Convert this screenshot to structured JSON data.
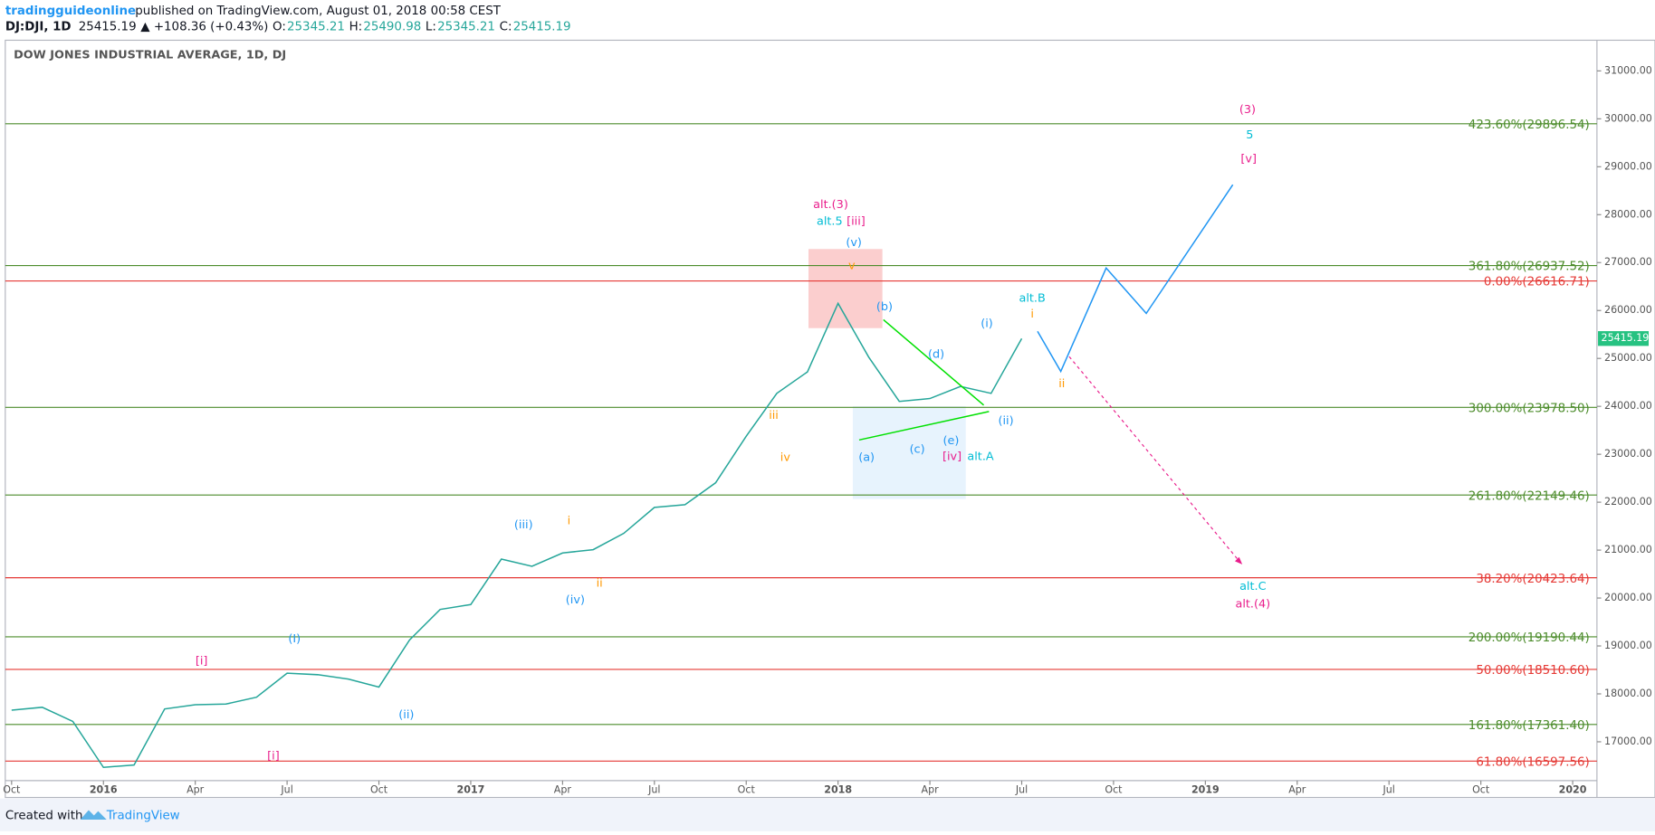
{
  "header": {
    "author": "tradingguideonline",
    "published": "published on TradingView.com, August 01, 2018 00:58 CEST",
    "symbol": "DJ:DJI, 1D",
    "price": "25415.19",
    "change": "▲ +108.36 (+0.43%)",
    "ohlc": [
      {
        "key": "O:",
        "value": "25345.21"
      },
      {
        "key": "H:",
        "value": "25490.98"
      },
      {
        "key": "L:",
        "value": "25345.21"
      },
      {
        "key": "C:",
        "value": "25415.19"
      }
    ]
  },
  "chart_data": {
    "type": "line",
    "title": "DOW JONES INDUSTRIAL AVERAGE, 1D, DJ",
    "color": "#26a69a",
    "x": [
      "2015-10",
      "2015-11",
      "2015-12",
      "2016-01",
      "2016-02",
      "2016-03",
      "2016-04",
      "2016-05",
      "2016-06",
      "2016-07",
      "2016-08",
      "2016-09",
      "2016-10",
      "2016-11",
      "2016-12",
      "2017-01",
      "2017-02",
      "2017-03",
      "2017-04",
      "2017-05",
      "2017-06",
      "2017-07",
      "2017-08",
      "2017-09",
      "2017-10",
      "2017-11",
      "2017-12",
      "2018-01",
      "2018-02",
      "2018-03",
      "2018-04",
      "2018-05",
      "2018-06",
      "2018-07"
    ],
    "values": [
      17660,
      17720,
      17425,
      16466,
      16516,
      17685,
      17773,
      17787,
      17930,
      18432,
      18400,
      18308,
      18142,
      19124,
      19762,
      19864,
      20812,
      20663,
      20940,
      21009,
      21350,
      21891,
      21948,
      22405,
      23377,
      24272,
      24719,
      26149,
      25029,
      24103,
      24163,
      24416,
      24271,
      25415
    ],
    "xlim": [
      "2015-10",
      "2020-01"
    ],
    "xticks": [
      {
        "value": "2015-10",
        "label": "Oct"
      },
      {
        "value": "2016-01",
        "label": "2016"
      },
      {
        "value": "2016-04",
        "label": "Apr"
      },
      {
        "value": "2016-07",
        "label": "Jul"
      },
      {
        "value": "2016-10",
        "label": "Oct"
      },
      {
        "value": "2017-01",
        "label": "2017"
      },
      {
        "value": "2017-04",
        "label": "Apr"
      },
      {
        "value": "2017-07",
        "label": "Jul"
      },
      {
        "value": "2017-10",
        "label": "Oct"
      },
      {
        "value": "2018-01",
        "label": "2018"
      },
      {
        "value": "2018-04",
        "label": "Apr"
      },
      {
        "value": "2018-07",
        "label": "Jul"
      },
      {
        "value": "2018-10",
        "label": "Oct"
      },
      {
        "value": "2019-01",
        "label": "2019"
      },
      {
        "value": "2019-04",
        "label": "Apr"
      },
      {
        "value": "2019-07",
        "label": "Jul"
      },
      {
        "value": "2019-10",
        "label": "Oct"
      },
      {
        "value": "2020-01",
        "label": "2020"
      }
    ],
    "ylim": [
      16190,
      31640
    ],
    "yticks": [
      {
        "value": 17000,
        "label": "17000.00"
      },
      {
        "value": 18000,
        "label": "18000.00"
      },
      {
        "value": 19000,
        "label": "19000.00"
      },
      {
        "value": 20000,
        "label": "20000.00"
      },
      {
        "value": 21000,
        "label": "21000.00"
      },
      {
        "value": 22000,
        "label": "22000.00"
      },
      {
        "value": 23000,
        "label": "23000.00"
      },
      {
        "value": 24000,
        "label": "24000.00"
      },
      {
        "value": 25000,
        "label": "25000.00"
      },
      {
        "value": 26000,
        "label": "26000.00"
      },
      {
        "value": 27000,
        "label": "27000.00"
      },
      {
        "value": 28000,
        "label": "28000.00"
      },
      {
        "value": 29000,
        "label": "29000.00"
      },
      {
        "value": 30000,
        "label": "30000.00"
      },
      {
        "value": 31000,
        "label": "31000.00"
      }
    ],
    "last_price": {
      "value": 25415.19,
      "label": "25415.19"
    },
    "fib_levels": [
      {
        "label": "423.60%(29896.54)",
        "value": 29896.54,
        "color": "#4c8c2b"
      },
      {
        "label": "361.80%(26937.52)",
        "value": 26937.52,
        "color": "#4c8c2b"
      },
      {
        "label": "0.00%(26616.71)",
        "value": 26616.71,
        "color": "#e53935"
      },
      {
        "label": "300.00%(23978.50)",
        "value": 23978.5,
        "color": "#4c8c2b"
      },
      {
        "label": "261.80%(22149.46)",
        "value": 22149.46,
        "color": "#4c8c2b"
      },
      {
        "label": "38.20%(20423.64)",
        "value": 20423.64,
        "color": "#e53935"
      },
      {
        "label": "200.00%(19190.44)",
        "value": 19190.44,
        "color": "#4c8c2b"
      },
      {
        "label": "50.00%(18510.60)",
        "value": 18510.6,
        "color": "#e53935"
      },
      {
        "label": "161.80%(17361.40)",
        "value": 17361.4,
        "color": "#4c8c2b"
      },
      {
        "label": "61.80%(16597.56)",
        "value": 16597.56,
        "color": "#e53935"
      }
    ],
    "annotations": [
      {
        "text": "(3)",
        "color": "#e91e8c"
      },
      {
        "text": "5",
        "color": "#00bcd4"
      },
      {
        "text": "[v]",
        "color": "#e91e8c"
      },
      {
        "text": "alt.(3)",
        "color": "#e91e8c"
      },
      {
        "text": "alt.5",
        "color": "#00bcd4"
      },
      {
        "text": "[iii]",
        "color": "#e91e8c"
      },
      {
        "text": "(v)",
        "color": "#2196f3"
      },
      {
        "text": "v",
        "color": "#ff9800"
      },
      {
        "text": "(b)",
        "color": "#2196f3"
      },
      {
        "text": "(d)",
        "color": "#2196f3"
      },
      {
        "text": "(i)",
        "color": "#2196f3"
      },
      {
        "text": "alt.B",
        "color": "#00bcd4"
      },
      {
        "text": "i",
        "color": "#ff9800"
      },
      {
        "text": "ii",
        "color": "#ff9800"
      },
      {
        "text": "(ii)",
        "color": "#2196f3"
      },
      {
        "text": "(a)",
        "color": "#2196f3"
      },
      {
        "text": "(c)",
        "color": "#2196f3"
      },
      {
        "text": "(e)",
        "color": "#2196f3"
      },
      {
        "text": "[iv]",
        "color": "#e91e8c"
      },
      {
        "text": "alt.A",
        "color": "#00bcd4"
      },
      {
        "text": "iii",
        "color": "#ff9800"
      },
      {
        "text": "iv",
        "color": "#ff9800"
      },
      {
        "text": "(iii)",
        "color": "#2196f3"
      },
      {
        "text": "i",
        "color": "#ff9800"
      },
      {
        "text": "ii",
        "color": "#ff9800"
      },
      {
        "text": "(iv)",
        "color": "#2196f3"
      },
      {
        "text": "(I)",
        "color": "#2196f3"
      },
      {
        "text": "(ii)",
        "color": "#2196f3"
      },
      {
        "text": "[i]",
        "color": "#e91e8c"
      },
      {
        "text": "[i]",
        "color": "#e91e8c"
      },
      {
        "text": "alt.C",
        "color": "#00bcd4"
      },
      {
        "text": "alt.(4)",
        "color": "#e91e8c"
      }
    ]
  },
  "footer": {
    "created_with": "Created with",
    "brand": "TradingView"
  }
}
